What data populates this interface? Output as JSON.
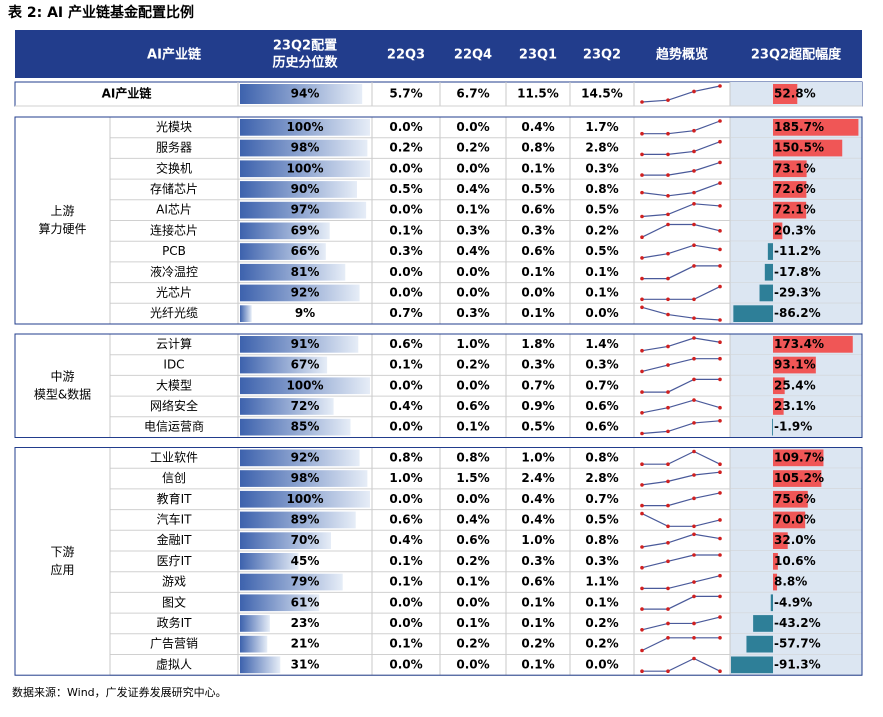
{
  "title": "表 2: AI 产业链基金配置比例",
  "header": [
    "AI产业链",
    [
      "23Q2配置",
      "历史分位数"
    ],
    "22Q3",
    "22Q4",
    "23Q1",
    "23Q2",
    "趋势概览",
    "23Q2超配幅度"
  ],
  "summary": [
    "AI产业链",
    "94%",
    "5.7%",
    "6.7%",
    "11.5%",
    "14.5%",
    "52.8%"
  ],
  "groups": [
    {
      "label": [
        "上游",
        "算力硬件"
      ],
      "rows": [
        [
          "光模块",
          "100%",
          "0.0%",
          "0.0%",
          "0.4%",
          "1.7%",
          "185.7%"
        ],
        [
          "服务器",
          "98%",
          "0.2%",
          "0.2%",
          "0.8%",
          "2.8%",
          "150.5%"
        ],
        [
          "交换机",
          "100%",
          "0.0%",
          "0.0%",
          "0.1%",
          "0.3%",
          "73.1%"
        ],
        [
          "存储芯片",
          "90%",
          "0.5%",
          "0.4%",
          "0.5%",
          "0.8%",
          "72.6%"
        ],
        [
          "AI芯片",
          "97%",
          "0.0%",
          "0.1%",
          "0.6%",
          "0.5%",
          "72.1%"
        ],
        [
          "连接芯片",
          "69%",
          "0.1%",
          "0.3%",
          "0.3%",
          "0.2%",
          "20.3%"
        ],
        [
          "PCB",
          "66%",
          "0.3%",
          "0.4%",
          "0.6%",
          "0.5%",
          "-11.2%"
        ],
        [
          "液冷温控",
          "81%",
          "0.0%",
          "0.0%",
          "0.1%",
          "0.1%",
          "-17.8%"
        ],
        [
          "光芯片",
          "92%",
          "0.0%",
          "0.0%",
          "0.0%",
          "0.1%",
          "-29.3%"
        ],
        [
          "光纤光缆",
          "9%",
          "0.7%",
          "0.3%",
          "0.1%",
          "0.0%",
          "-86.2%"
        ]
      ]
    },
    {
      "label": [
        "中游",
        "模型&数据"
      ],
      "rows": [
        [
          "云计算",
          "91%",
          "0.6%",
          "1.0%",
          "1.8%",
          "1.4%",
          "173.4%"
        ],
        [
          "IDC",
          "67%",
          "0.1%",
          "0.2%",
          "0.3%",
          "0.3%",
          "93.1%"
        ],
        [
          "大模型",
          "100%",
          "0.0%",
          "0.0%",
          "0.7%",
          "0.7%",
          "25.4%"
        ],
        [
          "网络安全",
          "72%",
          "0.4%",
          "0.6%",
          "0.9%",
          "0.6%",
          "23.1%"
        ],
        [
          "电信运营商",
          "85%",
          "0.0%",
          "0.1%",
          "0.5%",
          "0.6%",
          "-1.9%"
        ]
      ]
    },
    {
      "label": [
        "下游",
        "应用"
      ],
      "rows": [
        [
          "工业软件",
          "92%",
          "0.8%",
          "0.8%",
          "1.0%",
          "0.8%",
          "109.7%"
        ],
        [
          "信创",
          "98%",
          "1.0%",
          "1.5%",
          "2.4%",
          "2.8%",
          "105.2%"
        ],
        [
          "教育IT",
          "100%",
          "0.0%",
          "0.0%",
          "0.4%",
          "0.7%",
          "75.6%"
        ],
        [
          "汽车IT",
          "89%",
          "0.6%",
          "0.4%",
          "0.4%",
          "0.5%",
          "70.0%"
        ],
        [
          "金融IT",
          "70%",
          "0.4%",
          "0.6%",
          "1.0%",
          "0.8%",
          "32.0%"
        ],
        [
          "医疗IT",
          "45%",
          "0.1%",
          "0.2%",
          "0.3%",
          "0.3%",
          "10.6%"
        ],
        [
          "游戏",
          "79%",
          "0.1%",
          "0.1%",
          "0.6%",
          "1.1%",
          "8.8%"
        ],
        [
          "图文",
          "61%",
          "0.0%",
          "0.0%",
          "0.1%",
          "0.1%",
          "-4.9%"
        ],
        [
          "政务IT",
          "23%",
          "0.0%",
          "0.1%",
          "0.1%",
          "0.2%",
          "-43.2%"
        ],
        [
          "广告营销",
          "21%",
          "0.1%",
          "0.2%",
          "0.2%",
          "0.2%",
          "-57.7%"
        ],
        [
          "虚拟人",
          "31%",
          "0.0%",
          "0.0%",
          "0.1%",
          "0.0%",
          "-91.3%"
        ]
      ]
    }
  ],
  "source": "数据来源：Wind，广发证券发展研究中心。"
}
